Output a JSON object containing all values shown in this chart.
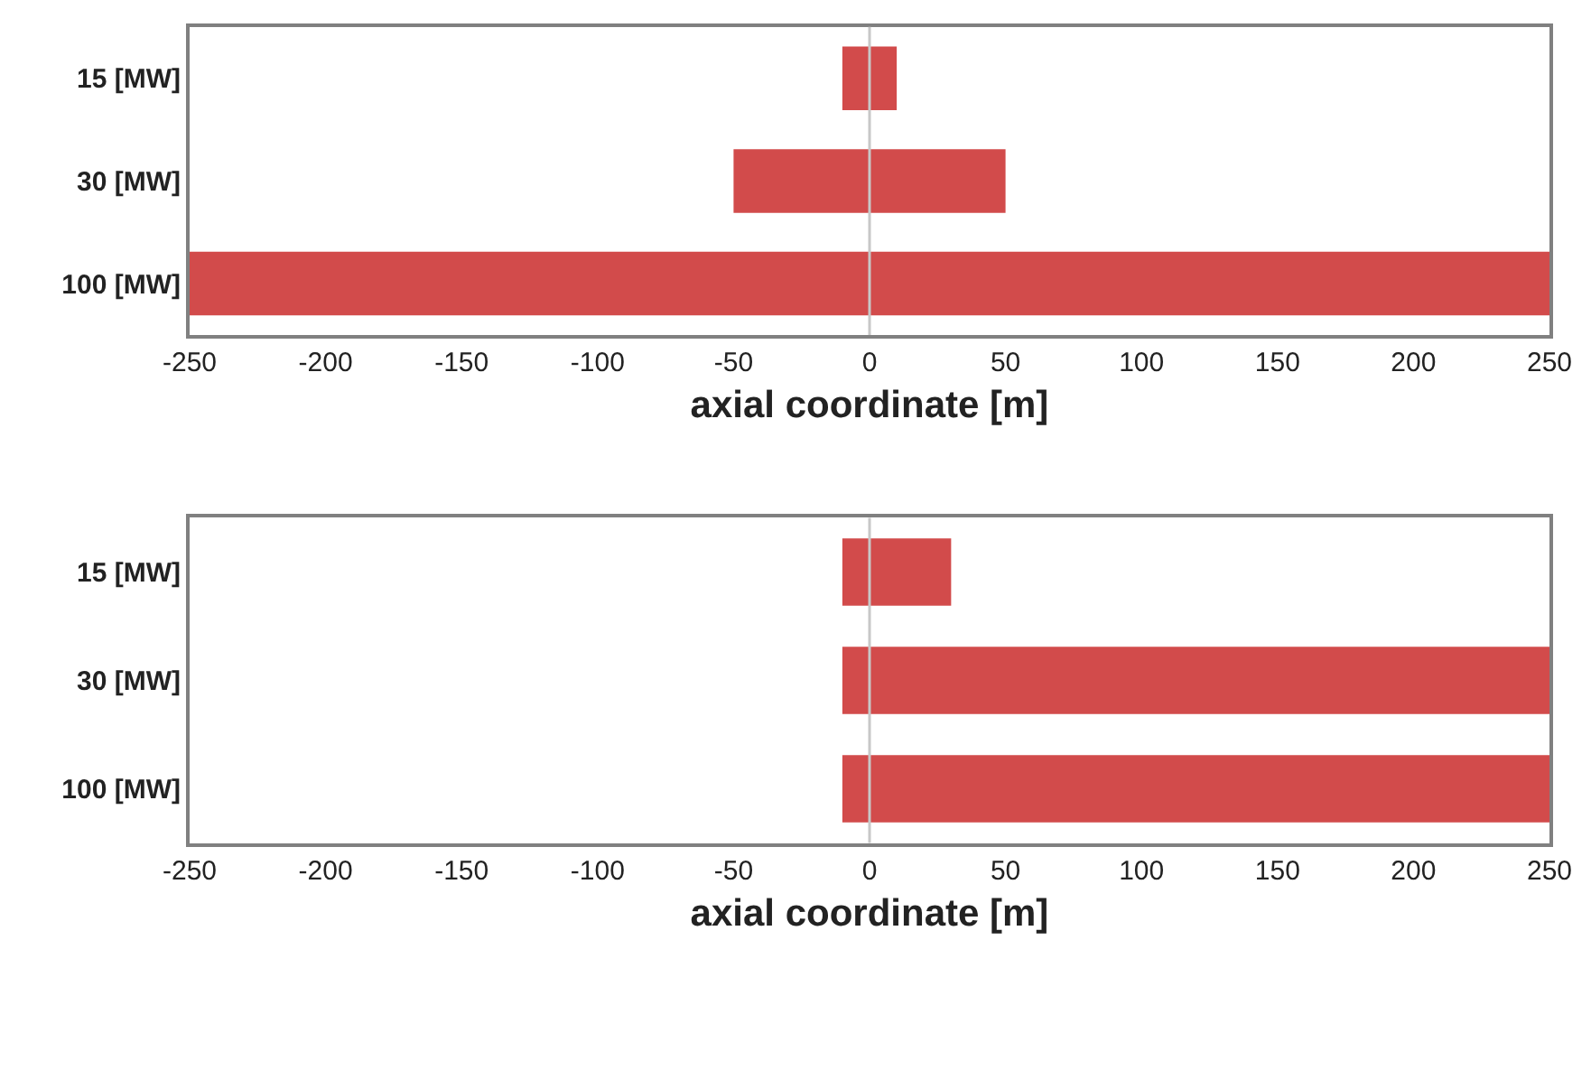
{
  "chart_data": [
    {
      "type": "bar",
      "orientation": "horizontal",
      "categories": [
        "15 [MW]",
        "30 [MW]",
        "100 [MW]"
      ],
      "base": [
        -10,
        -50,
        -250
      ],
      "values": [
        20,
        100,
        500
      ],
      "color": "#d24b4b",
      "xlim": [
        -250,
        250
      ],
      "xticks": [
        -250,
        -200,
        -150,
        -100,
        -50,
        0,
        50,
        100,
        150,
        200,
        250
      ],
      "xlabel": "axial coordinate [m]",
      "ref_lines": [
        {
          "axis": "x",
          "value": 0,
          "color": "#c8c8c8"
        }
      ]
    },
    {
      "type": "bar",
      "orientation": "horizontal",
      "categories": [
        "15 [MW]",
        "30 [MW]",
        "100 [MW]"
      ],
      "base": [
        -10,
        -10,
        -10
      ],
      "values": [
        40,
        260,
        260
      ],
      "color": "#d24b4b",
      "xlim": [
        -250,
        250
      ],
      "xticks": [
        -250,
        -200,
        -150,
        -100,
        -50,
        0,
        50,
        100,
        150,
        200,
        250
      ],
      "xlabel": "axial coordinate [m]",
      "ref_lines": [
        {
          "axis": "x",
          "value": 0,
          "color": "#c8c8c8"
        }
      ]
    }
  ]
}
